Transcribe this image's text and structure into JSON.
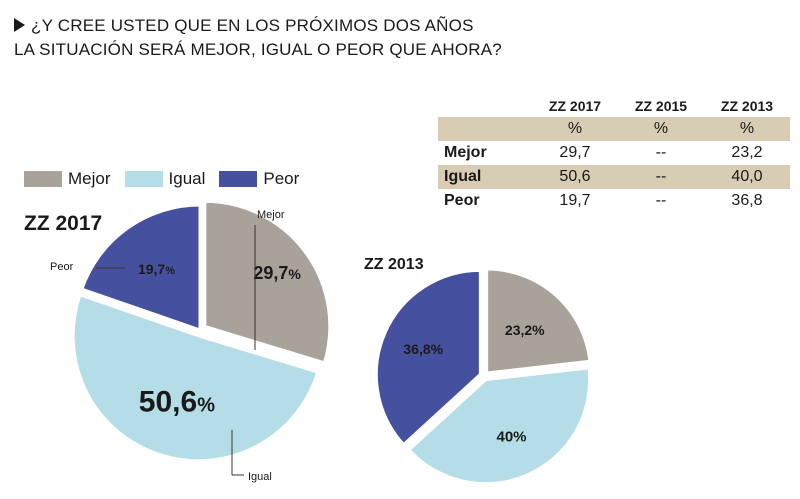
{
  "title": {
    "line1": "¿Y CREE USTED QUE EN LOS PRÓXIMOS DOS AÑOS",
    "line2": "LA SITUACIÓN SERÁ MEJOR, IGUAL O PEOR QUE AHORA?"
  },
  "legend": [
    {
      "label": "Mejor",
      "color": "#a8a29a"
    },
    {
      "label": "Igual",
      "color": "#b4dde7"
    },
    {
      "label": "Peor",
      "color": "#45519e"
    }
  ],
  "table": {
    "headers": [
      "ZZ 2017",
      "ZZ 2015",
      "ZZ 2013"
    ],
    "units": [
      "%",
      "%",
      "%"
    ],
    "rows": [
      {
        "label": "Mejor",
        "values": [
          "29,7",
          "--",
          "23,2"
        ]
      },
      {
        "label": "Igual",
        "values": [
          "50,6",
          "--",
          "40,0"
        ]
      },
      {
        "label": "Peor",
        "values": [
          "19,7",
          "--",
          "36,8"
        ]
      }
    ]
  },
  "chart_data": [
    {
      "type": "pie",
      "title": "ZZ 2017",
      "categories": [
        "Mejor",
        "Igual",
        "Peor"
      ],
      "values": [
        29.7,
        50.6,
        19.7
      ],
      "value_labels": [
        {
          "num": "29,7",
          "unit": "%"
        },
        {
          "num": "50,6",
          "unit": "%"
        },
        {
          "num": "19,7",
          "unit": "%"
        }
      ],
      "callouts": [
        "Mejor",
        "Igual",
        "Peor"
      ]
    },
    {
      "type": "pie",
      "title": "ZZ 2013",
      "categories": [
        "Mejor",
        "Igual",
        "Peor"
      ],
      "values": [
        23.2,
        40.0,
        36.8
      ],
      "value_labels": [
        {
          "num": "23,2%",
          "unit": ""
        },
        {
          "num": "40%",
          "unit": ""
        },
        {
          "num": "36,8%",
          "unit": ""
        }
      ]
    }
  ]
}
